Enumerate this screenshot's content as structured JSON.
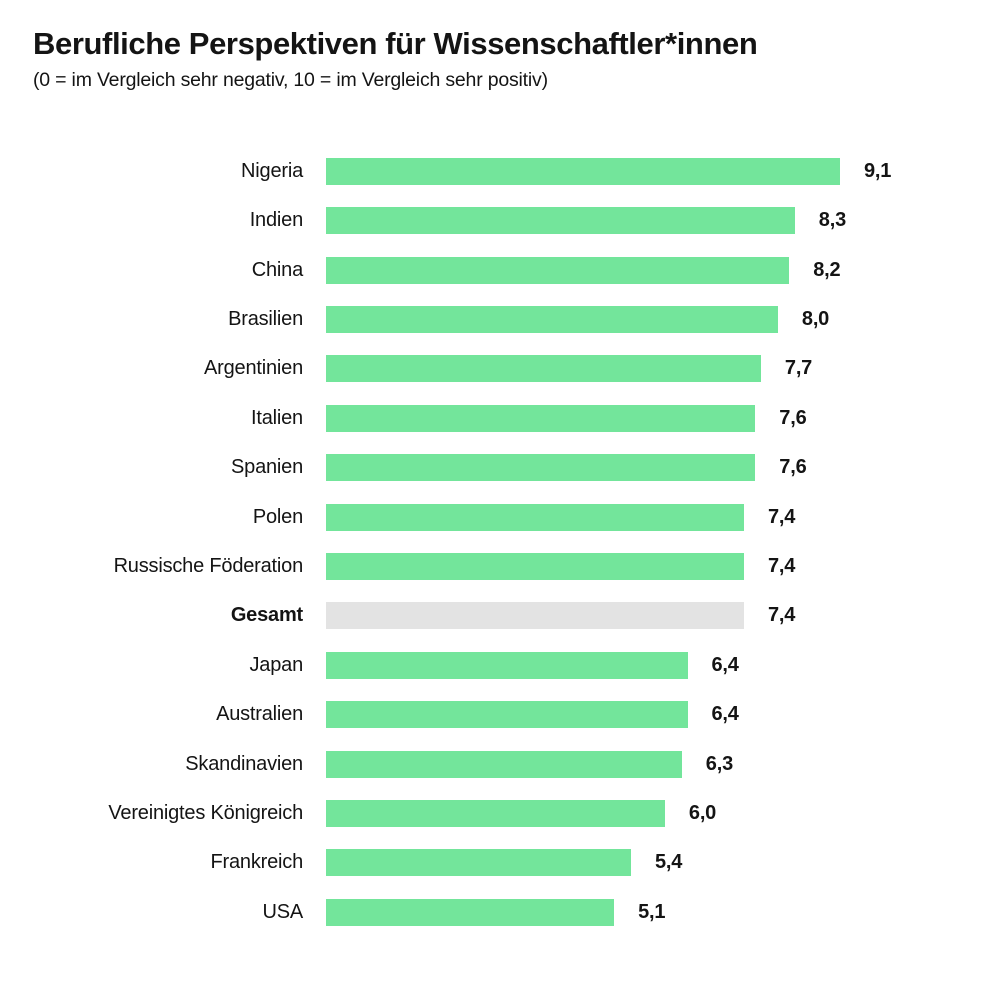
{
  "colors": {
    "bar_green": "#73E59B",
    "bar_gray_highlight": "#E3E3E3",
    "text": "#141414",
    "background": "#FFFFFF"
  },
  "chart_data": {
    "type": "bar",
    "orientation": "horizontal",
    "title": "Berufliche Perspektiven für Wissenschaftler*innen",
    "subtitle": "(0 = im Vergleich sehr negativ, 10 = im Vergleich sehr positiv)",
    "categories": [
      "Nigeria",
      "Indien",
      "China",
      "Brasilien",
      "Argentinien",
      "Italien",
      "Spanien",
      "Polen",
      "Russische Föderation",
      "Gesamt",
      "Japan",
      "Australien",
      "Skandinavien",
      "Vereinigtes Königreich",
      "Frankreich",
      "USA"
    ],
    "values": [
      9.1,
      8.3,
      8.2,
      8.0,
      7.7,
      7.6,
      7.6,
      7.4,
      7.4,
      7.4,
      6.4,
      6.4,
      6.3,
      6.0,
      5.4,
      5.1
    ],
    "value_labels": [
      "9,1",
      "8,3",
      "8,2",
      "8,0",
      "7,7",
      "7,6",
      "7,6",
      "7,4",
      "7,4",
      "7,4",
      "6,4",
      "6,4",
      "6,3",
      "6,0",
      "5,4",
      "5,1"
    ],
    "highlight_category": "Gesamt",
    "axis_scale_min": 0,
    "axis_scale_max": 10,
    "grid": false,
    "legend": false
  }
}
